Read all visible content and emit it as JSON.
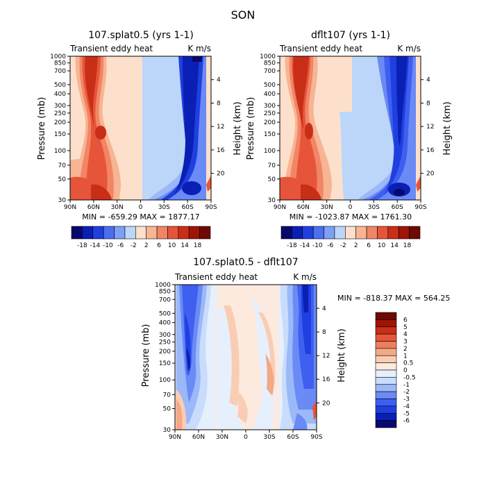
{
  "figure": {
    "season_title": "SON"
  },
  "chart_data": [
    {
      "type": "heatmap",
      "title": "107.splat0.5 (yrs 1-1)",
      "left_label": "Transient eddy heat",
      "right_label": "K m/s",
      "ylabel": "Pressure (mb)",
      "ylabel_right": "Height (km)",
      "xticks": [
        "90N",
        "60N",
        "30N",
        "0",
        "30S",
        "60S",
        "90S"
      ],
      "yticks": [
        "30",
        "50",
        "70",
        "100",
        "150",
        "200",
        "250",
        "300",
        "400",
        "500",
        "700",
        "850",
        "1000"
      ],
      "height_ticks": [
        "20",
        "16",
        "12",
        "8",
        "4"
      ],
      "stats": "MIN = -659.29   MAX = 1877.17",
      "colorbar_labels": [
        "-18",
        "-14",
        "-10",
        "-6",
        "-2",
        "2",
        "6",
        "10",
        "14",
        "18"
      ],
      "ylim": [
        1000,
        30
      ],
      "xlim": [
        90,
        -90
      ]
    },
    {
      "type": "heatmap",
      "title": "dflt107 (yrs 1-1)",
      "left_label": "Transient eddy heat",
      "right_label": "K m/s",
      "ylabel": "Pressure (mb)",
      "ylabel_right": "Height (km)",
      "xticks": [
        "90N",
        "60N",
        "30N",
        "0",
        "30S",
        "60S",
        "90S"
      ],
      "yticks": [
        "30",
        "50",
        "70",
        "100",
        "150",
        "200",
        "250",
        "300",
        "400",
        "500",
        "700",
        "850",
        "1000"
      ],
      "height_ticks": [
        "20",
        "16",
        "12",
        "8",
        "4"
      ],
      "stats": "MIN = -1023.87   MAX = 1761.30",
      "colorbar_labels": [
        "-18",
        "-14",
        "-10",
        "-6",
        "-2",
        "2",
        "6",
        "10",
        "14",
        "18"
      ],
      "ylim": [
        1000,
        30
      ],
      "xlim": [
        90,
        -90
      ]
    },
    {
      "type": "heatmap",
      "title": "107.splat0.5 - dflt107",
      "left_label": "Transient eddy heat",
      "right_label": "K m/s",
      "ylabel": "Pressure (mb)",
      "ylabel_right": "Height (km)",
      "xticks": [
        "90N",
        "60N",
        "30N",
        "0",
        "30S",
        "60S",
        "90S"
      ],
      "yticks": [
        "30",
        "50",
        "70",
        "100",
        "150",
        "200",
        "250",
        "300",
        "400",
        "500",
        "700",
        "850",
        "1000"
      ],
      "height_ticks": [
        "20",
        "16",
        "12",
        "8",
        "4"
      ],
      "stats": "MIN = -818.37   MAX = 564.25",
      "colorbar_labels": [
        "6",
        "5",
        "4",
        "3",
        "2",
        "1",
        "0.5",
        "0",
        "-0.5",
        "-1",
        "-2",
        "-3",
        "-4",
        "-5",
        "-6"
      ],
      "ylim": [
        1000,
        30
      ],
      "xlim": [
        90,
        -90
      ]
    }
  ],
  "colors": {
    "bar12": [
      "#08086e",
      "#0a1fb4",
      "#1f3fe0",
      "#4a6ff0",
      "#7d9ff6",
      "#bcd6fa",
      "#fde0cc",
      "#f7b594",
      "#f28565",
      "#e6553a",
      "#c92e17",
      "#9e1508",
      "#6e0a04"
    ],
    "bar16": [
      "#08086e",
      "#0a1fb4",
      "#1f3fe0",
      "#3f5ff0",
      "#6a8af5",
      "#9bb8f8",
      "#c9dcfb",
      "#e6f0fd",
      "#fdeadf",
      "#f9cdb3",
      "#f4a886",
      "#ee7e5c",
      "#e6553a",
      "#c92e17",
      "#9e1508",
      "#6e0a04"
    ]
  }
}
